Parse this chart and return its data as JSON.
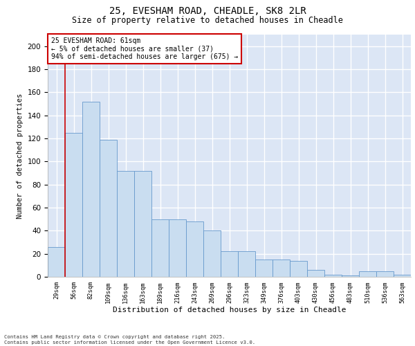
{
  "title1": "25, EVESHAM ROAD, CHEADLE, SK8 2LR",
  "title2": "Size of property relative to detached houses in Cheadle",
  "xlabel": "Distribution of detached houses by size in Cheadle",
  "ylabel": "Number of detached properties",
  "categories": [
    "29sqm",
    "56sqm",
    "82sqm",
    "109sqm",
    "136sqm",
    "163sqm",
    "189sqm",
    "216sqm",
    "243sqm",
    "269sqm",
    "296sqm",
    "323sqm",
    "349sqm",
    "376sqm",
    "403sqm",
    "430sqm",
    "456sqm",
    "483sqm",
    "510sqm",
    "536sqm",
    "563sqm"
  ],
  "values": [
    26,
    125,
    152,
    119,
    92,
    92,
    50,
    50,
    48,
    40,
    22,
    22,
    15,
    15,
    14,
    6,
    2,
    1,
    5,
    5,
    2
  ],
  "bar_color": "#c9ddf0",
  "bar_edge_color": "#6699cc",
  "vline_color": "#cc0000",
  "annotation_text": "25 EVESHAM ROAD: 61sqm\n← 5% of detached houses are smaller (37)\n94% of semi-detached houses are larger (675) →",
  "annotation_box_color": "white",
  "annotation_box_edge_color": "#cc0000",
  "ylim": [
    0,
    210
  ],
  "yticks": [
    0,
    20,
    40,
    60,
    80,
    100,
    120,
    140,
    160,
    180,
    200
  ],
  "bg_color": "#dce6f5",
  "grid_color": "#ffffff",
  "footer_line1": "Contains HM Land Registry data © Crown copyright and database right 2025.",
  "footer_line2": "Contains public sector information licensed under the Open Government Licence v3.0."
}
